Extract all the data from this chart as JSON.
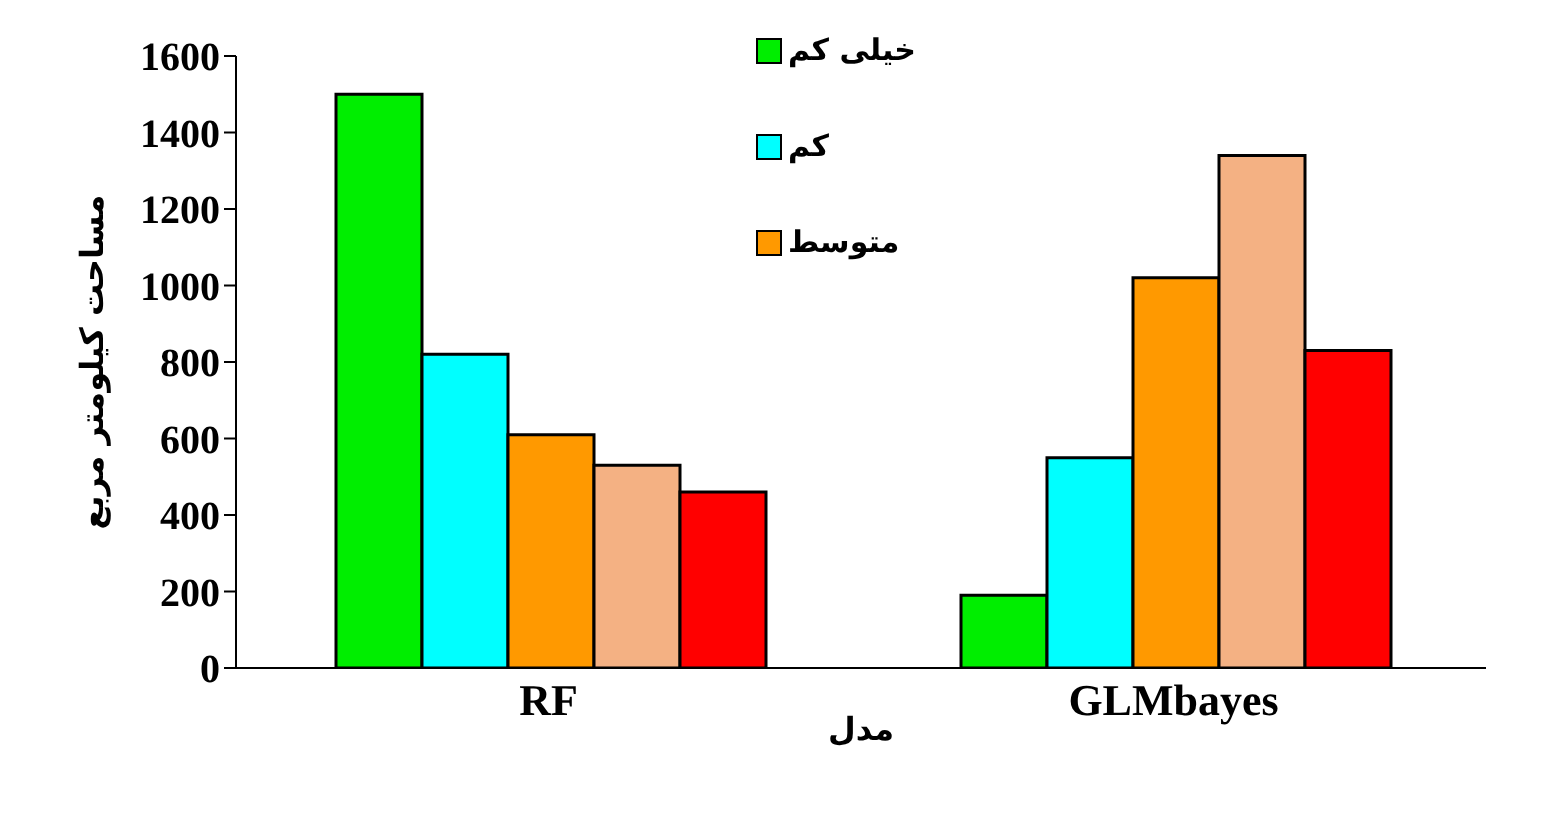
{
  "chart_data": {
    "type": "bar",
    "xlabel": "مدل",
    "ylabel": "مساحت کیلومتر مربع",
    "categories": [
      "RF",
      "GLMbayes"
    ],
    "series": [
      {
        "name": "خیلی کم",
        "color": "#00ee00",
        "values": [
          1500,
          190
        ]
      },
      {
        "name": "کم",
        "color": "#00ffff",
        "values": [
          820,
          550
        ]
      },
      {
        "name": "متوسط",
        "color": "#ff9900",
        "values": [
          610,
          1020
        ]
      },
      {
        "color": "#f4b183",
        "values": [
          530,
          1340
        ]
      },
      {
        "color": "#ff0000",
        "values": [
          460,
          830
        ]
      }
    ],
    "ylim": [
      0,
      1600
    ],
    "yticks": [
      0,
      200,
      400,
      600,
      800,
      1000,
      1200,
      1400,
      1600
    ],
    "grid": false,
    "legend": "top"
  }
}
